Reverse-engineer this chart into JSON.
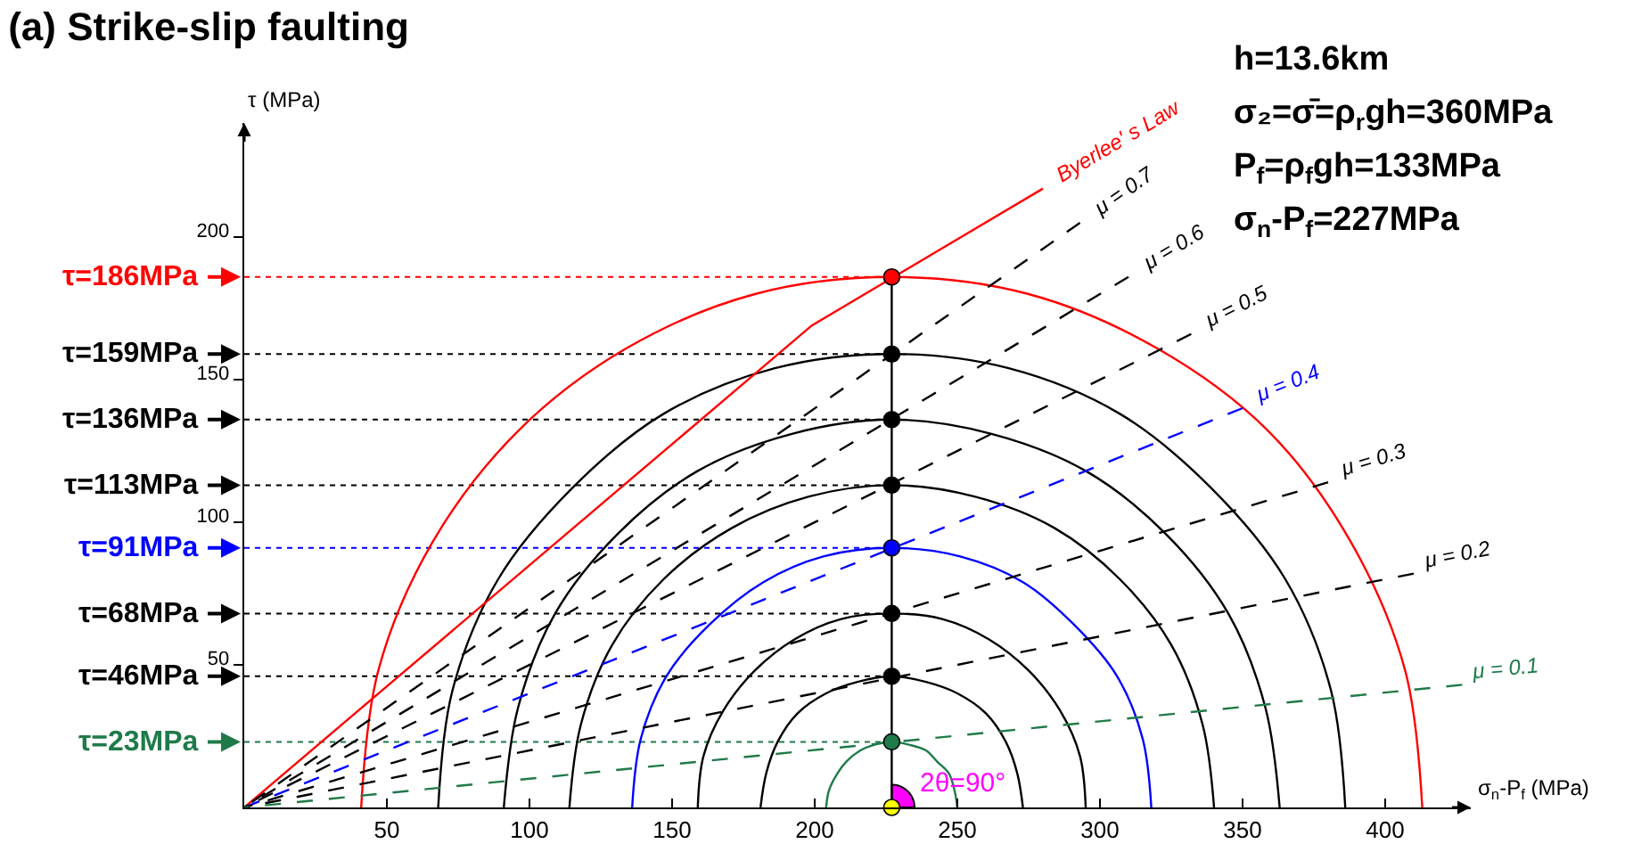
{
  "chart_data": {
    "type": "line",
    "title": "(a) Strike-slip faulting",
    "xlabel": "σ$_{n}$-P$_{f}$ (MPa)",
    "ylabel": "τ (MPa)",
    "xlim": [
      0,
      430
    ],
    "ylim": [
      0,
      240
    ],
    "xticks": [
      50,
      100,
      150,
      200,
      250,
      300,
      350,
      400
    ],
    "yticks": [
      50,
      100,
      150,
      200
    ],
    "grid": false,
    "marker": "none",
    "line_style": "solid",
    "annotations": [
      "h=13.6km",
      "σ₂=σ̄=ρ$_{r}$gh=360MPa",
      "P$_{f}$=ρ$_{f}$gh=133MPa",
      "σ$_{n}$-P$_{f}$=227MPa",
      "2θ=90°"
    ],
    "ref_lines": [
      {
        "axis": "y",
        "value": 186,
        "label": "τ=186MPa",
        "color": "#ff0000",
        "line_style": "dotted"
      },
      {
        "axis": "y",
        "value": 159,
        "label": "τ=159MPa",
        "color": "#000000",
        "line_style": "dotted"
      },
      {
        "axis": "y",
        "value": 136,
        "label": "τ=136MPa",
        "color": "#000000",
        "line_style": "dotted"
      },
      {
        "axis": "y",
        "value": 113,
        "label": "τ=113MPa",
        "color": "#000000",
        "line_style": "dotted"
      },
      {
        "axis": "y",
        "value": 91,
        "label": "τ=91MPa",
        "color": "#0000ff",
        "line_style": "dotted"
      },
      {
        "axis": "y",
        "value": 68,
        "label": "τ=68MPa",
        "color": "#000000",
        "line_style": "dotted"
      },
      {
        "axis": "y",
        "value": 46,
        "label": "τ=46MPa",
        "color": "#000000",
        "line_style": "dotted"
      },
      {
        "axis": "y",
        "value": 23,
        "label": "τ=23MPa",
        "color": "#1f7a4a",
        "line_style": "dotted"
      }
    ],
    "series": [
      {
        "color": "#ff0000",
        "x": [
          413,
          407,
          388,
          359,
          320,
          275,
          227,
          179,
          134,
          96,
          66,
          47,
          41
        ],
        "values": [
          0,
          48,
          93,
          132,
          161,
          180,
          186,
          180,
          161,
          132,
          93,
          48,
          0
        ]
      },
      {
        "color": "#000000",
        "x": [
          386,
          381,
          365,
          339,
          307,
          268,
          227,
          186,
          147,
          115,
          89,
          73,
          68
        ],
        "values": [
          0,
          41,
          80,
          112,
          138,
          154,
          159,
          154,
          138,
          112,
          80,
          41,
          0
        ]
      },
      {
        "color": "#000000",
        "x": [
          363,
          358,
          345,
          323,
          295,
          262,
          227,
          192,
          159,
          131,
          109,
          96,
          91
        ],
        "values": [
          0,
          35,
          68,
          96,
          118,
          131,
          136,
          131,
          118,
          96,
          68,
          35,
          0
        ]
      },
      {
        "color": "#000000",
        "x": [
          340,
          336,
          325,
          307,
          284,
          256,
          227,
          198,
          171,
          147,
          129,
          118,
          114
        ],
        "values": [
          0,
          29,
          57,
          80,
          98,
          109,
          113,
          109,
          98,
          80,
          57,
          29,
          0
        ]
      },
      {
        "color": "#0000ff",
        "x": [
          318,
          315,
          306,
          291,
          273,
          251,
          227,
          203,
          182,
          163,
          148,
          139,
          136
        ],
        "values": [
          0,
          24,
          46,
          64,
          79,
          88,
          91,
          88,
          79,
          64,
          46,
          24,
          0
        ]
      },
      {
        "color": "#000000",
        "x": [
          295,
          293,
          286,
          275,
          261,
          245,
          227,
          209,
          193,
          179,
          168,
          161,
          159
        ],
        "values": [
          0,
          18,
          34,
          48,
          59,
          66,
          68,
          66,
          59,
          48,
          34,
          18,
          0
        ]
      },
      {
        "color": "#000000",
        "x": [
          273,
          271,
          267,
          260,
          250,
          239,
          227,
          215,
          204,
          194,
          187,
          183,
          181
        ],
        "values": [
          0,
          12,
          23,
          33,
          40,
          44,
          46,
          44,
          40,
          33,
          23,
          12,
          0
        ]
      },
      {
        "color": "#1f7a4a",
        "x": [
          250,
          249,
          247,
          243,
          239,
          233,
          227,
          221,
          216,
          211,
          208,
          205,
          204
        ],
        "values": [
          0,
          6,
          12,
          16,
          20,
          22,
          23,
          22,
          20,
          16,
          12,
          6,
          0
        ]
      },
      {
        "name": "Byerlee' s Law",
        "color": "#ff0000",
        "x": [
          0,
          199,
          280
        ],
        "values": [
          0,
          169,
          217
        ]
      },
      {
        "name": "μ = 0.7",
        "color": "#000000",
        "line_style": "dashed",
        "x": [
          293,
          0
        ],
        "values": [
          205,
          0
        ]
      },
      {
        "name": "μ = 0.6",
        "color": "#000000",
        "line_style": "dashed",
        "x": [
          310,
          0
        ],
        "values": [
          186,
          0
        ]
      },
      {
        "name": "μ = 0.5",
        "color": "#000000",
        "line_style": "dashed",
        "x": [
          332,
          0
        ],
        "values": [
          166,
          0
        ]
      },
      {
        "name": "μ = 0.4",
        "color": "#0000ff",
        "line_style": "dashed",
        "x": [
          350,
          0
        ],
        "values": [
          140,
          0
        ]
      },
      {
        "name": "μ = 0.3",
        "color": "#000000",
        "line_style": "dashed",
        "x": [
          380,
          0
        ],
        "values": [
          114,
          0
        ]
      },
      {
        "name": "μ = 0.2",
        "color": "#000000",
        "line_style": "dashed",
        "x": [
          410,
          0
        ],
        "values": [
          82,
          0
        ]
      },
      {
        "name": "μ = 0.1",
        "color": "#1f7a4a",
        "line_style": "dashed",
        "x": [
          427,
          0
        ],
        "values": [
          43,
          0
        ]
      },
      {
        "color": "#000000",
        "x": [
          227,
          227
        ],
        "values": [
          0,
          186
        ]
      },
      {
        "type": "scatter",
        "color": "#000000",
        "marker": "circle",
        "x": [
          227,
          227,
          227,
          227,
          227,
          227,
          227,
          227,
          227
        ],
        "values": [
          186,
          159,
          136,
          113,
          91,
          68,
          46,
          23,
          0
        ],
        "colors": [
          "#ff0000",
          "#000000",
          "#000000",
          "#000000",
          "#0000ff",
          "#000000",
          "#000000",
          "#1f7a4a",
          "#ffff00"
        ]
      }
    ]
  }
}
